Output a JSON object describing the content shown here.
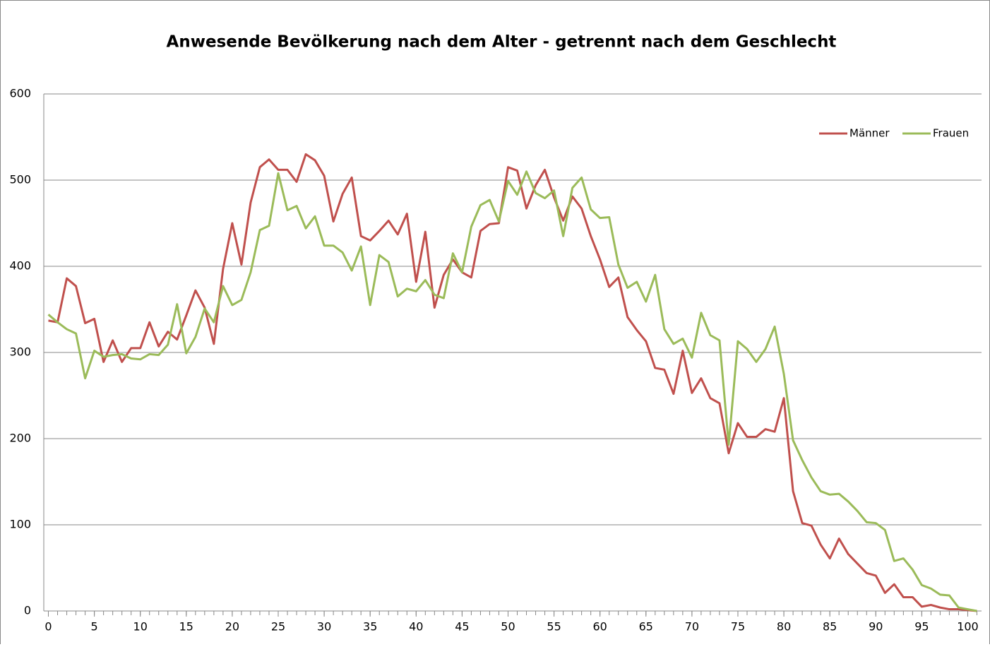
{
  "chart_data": {
    "type": "line",
    "title": "Anwesende Bevölkerung nach dem Alter - getrennt nach dem Geschlecht",
    "x": [
      0,
      1,
      2,
      3,
      4,
      5,
      6,
      7,
      8,
      9,
      10,
      11,
      12,
      13,
      14,
      15,
      16,
      17,
      18,
      19,
      20,
      21,
      22,
      23,
      24,
      25,
      26,
      27,
      28,
      29,
      30,
      31,
      32,
      33,
      34,
      35,
      36,
      37,
      38,
      39,
      40,
      41,
      42,
      43,
      44,
      45,
      46,
      47,
      48,
      49,
      50,
      51,
      52,
      53,
      54,
      55,
      56,
      57,
      58,
      59,
      60,
      61,
      62,
      63,
      64,
      65,
      66,
      67,
      68,
      69,
      70,
      71,
      72,
      73,
      74,
      75,
      76,
      77,
      78,
      79,
      80,
      81,
      82,
      83,
      84,
      85,
      86,
      87,
      88,
      89,
      90,
      91,
      92,
      93,
      94,
      95,
      96,
      97,
      98,
      99,
      100,
      101
    ],
    "series": [
      {
        "name": "Männer",
        "color": "#c0504d",
        "values": [
          337,
          335,
          386,
          377,
          334,
          339,
          289,
          314,
          289,
          305,
          305,
          335,
          307,
          324,
          315,
          343,
          372,
          352,
          310,
          397,
          450,
          402,
          474,
          515,
          524,
          512,
          512,
          498,
          530,
          523,
          505,
          452,
          484,
          503,
          435,
          430,
          441,
          453,
          437,
          461,
          382,
          440,
          352,
          390,
          408,
          393,
          387,
          441,
          449,
          450,
          515,
          511,
          467,
          494,
          512,
          480,
          453,
          481,
          467,
          435,
          408,
          376,
          387,
          341,
          326,
          313,
          282,
          280,
          252,
          302,
          253,
          270,
          247,
          241,
          183,
          218,
          202,
          202,
          211,
          208,
          247,
          139,
          102,
          99,
          77,
          61,
          84,
          66,
          55,
          44,
          41,
          21,
          31,
          16,
          16,
          5,
          7,
          4,
          2,
          2,
          1,
          0
        ]
      },
      {
        "name": "Frauen",
        "color": "#9bbb59",
        "values": [
          344,
          335,
          327,
          322,
          270,
          302,
          295,
          297,
          298,
          293,
          292,
          298,
          297,
          309,
          356,
          299,
          318,
          351,
          335,
          377,
          355,
          361,
          393,
          442,
          447,
          508,
          465,
          470,
          444,
          458,
          424,
          424,
          416,
          395,
          423,
          355,
          413,
          405,
          365,
          374,
          371,
          384,
          367,
          363,
          415,
          393,
          446,
          471,
          477,
          452,
          499,
          483,
          510,
          485,
          479,
          488,
          435,
          491,
          503,
          466,
          456,
          457,
          402,
          375,
          382,
          359,
          390,
          327,
          310,
          316,
          294,
          346,
          320,
          314,
          193,
          313,
          304,
          289,
          304,
          330,
          275,
          198,
          175,
          155,
          139,
          135,
          136,
          127,
          116,
          103,
          102,
          94,
          58,
          61,
          48,
          30,
          26,
          19,
          18,
          4,
          2,
          0
        ]
      }
    ],
    "xlim": [
      -0.5,
      101.5
    ],
    "xticks": [
      0,
      5,
      10,
      15,
      20,
      25,
      30,
      35,
      40,
      45,
      50,
      55,
      60,
      65,
      70,
      75,
      80,
      85,
      90,
      95,
      100
    ],
    "ylim": [
      0,
      600
    ],
    "yticks": [
      0,
      100,
      200,
      300,
      400,
      500,
      600
    ],
    "grid": true,
    "legend": "top-right"
  }
}
